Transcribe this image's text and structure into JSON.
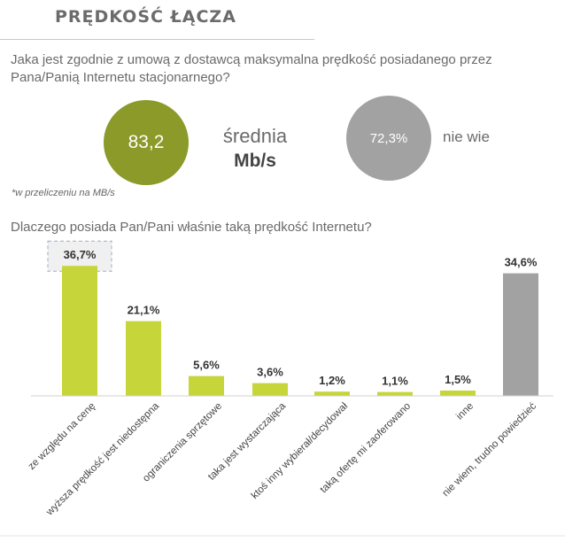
{
  "header": {
    "title": "PRĘDKOŚĆ ŁĄCZA"
  },
  "question1": "Jaka jest zgodnie z umową z dostawcą maksymalna prędkość posiadanego przez Pana/Panią Internetu stacjonarnego?",
  "average": {
    "value": "83,2",
    "label": "średnia",
    "unit": "Mb/s"
  },
  "dont_know": {
    "value": "72,3%",
    "label": "nie wie"
  },
  "footnote": "*w przeliczeniu na MB/s",
  "question2": "Dlaczego posiada Pan/Pani właśnie taką prędkość Internetu?",
  "colors": {
    "accent": "#c5d53a",
    "grey": "#a2a2a2",
    "olive": "#8b9a28"
  },
  "chart_data": {
    "type": "bar",
    "title": "",
    "xlabel": "",
    "ylabel": "",
    "ylim": [
      0,
      40
    ],
    "categories": [
      "ze względu na cenę",
      "wyższa prędkość jest niedostępna",
      "ograniczenia sprzętowe",
      "taka jest wystarczająca",
      "ktoś inny wybierał/decydował",
      "taką ofertę mi zaoferowano",
      "inne",
      "nie wiem, trudno powiedzieć"
    ],
    "values": [
      36.7,
      21.1,
      5.6,
      3.6,
      1.2,
      1.1,
      1.5,
      34.6
    ],
    "value_labels": [
      "36,7%",
      "21,1%",
      "5,6%",
      "3,6%",
      "1,2%",
      "1,1%",
      "1,5%",
      "34,6%"
    ],
    "highlighted_index": 0,
    "bar_colors": [
      "#c5d53a",
      "#c5d53a",
      "#c5d53a",
      "#c5d53a",
      "#c5d53a",
      "#c5d53a",
      "#c5d53a",
      "#a2a2a2"
    ]
  }
}
